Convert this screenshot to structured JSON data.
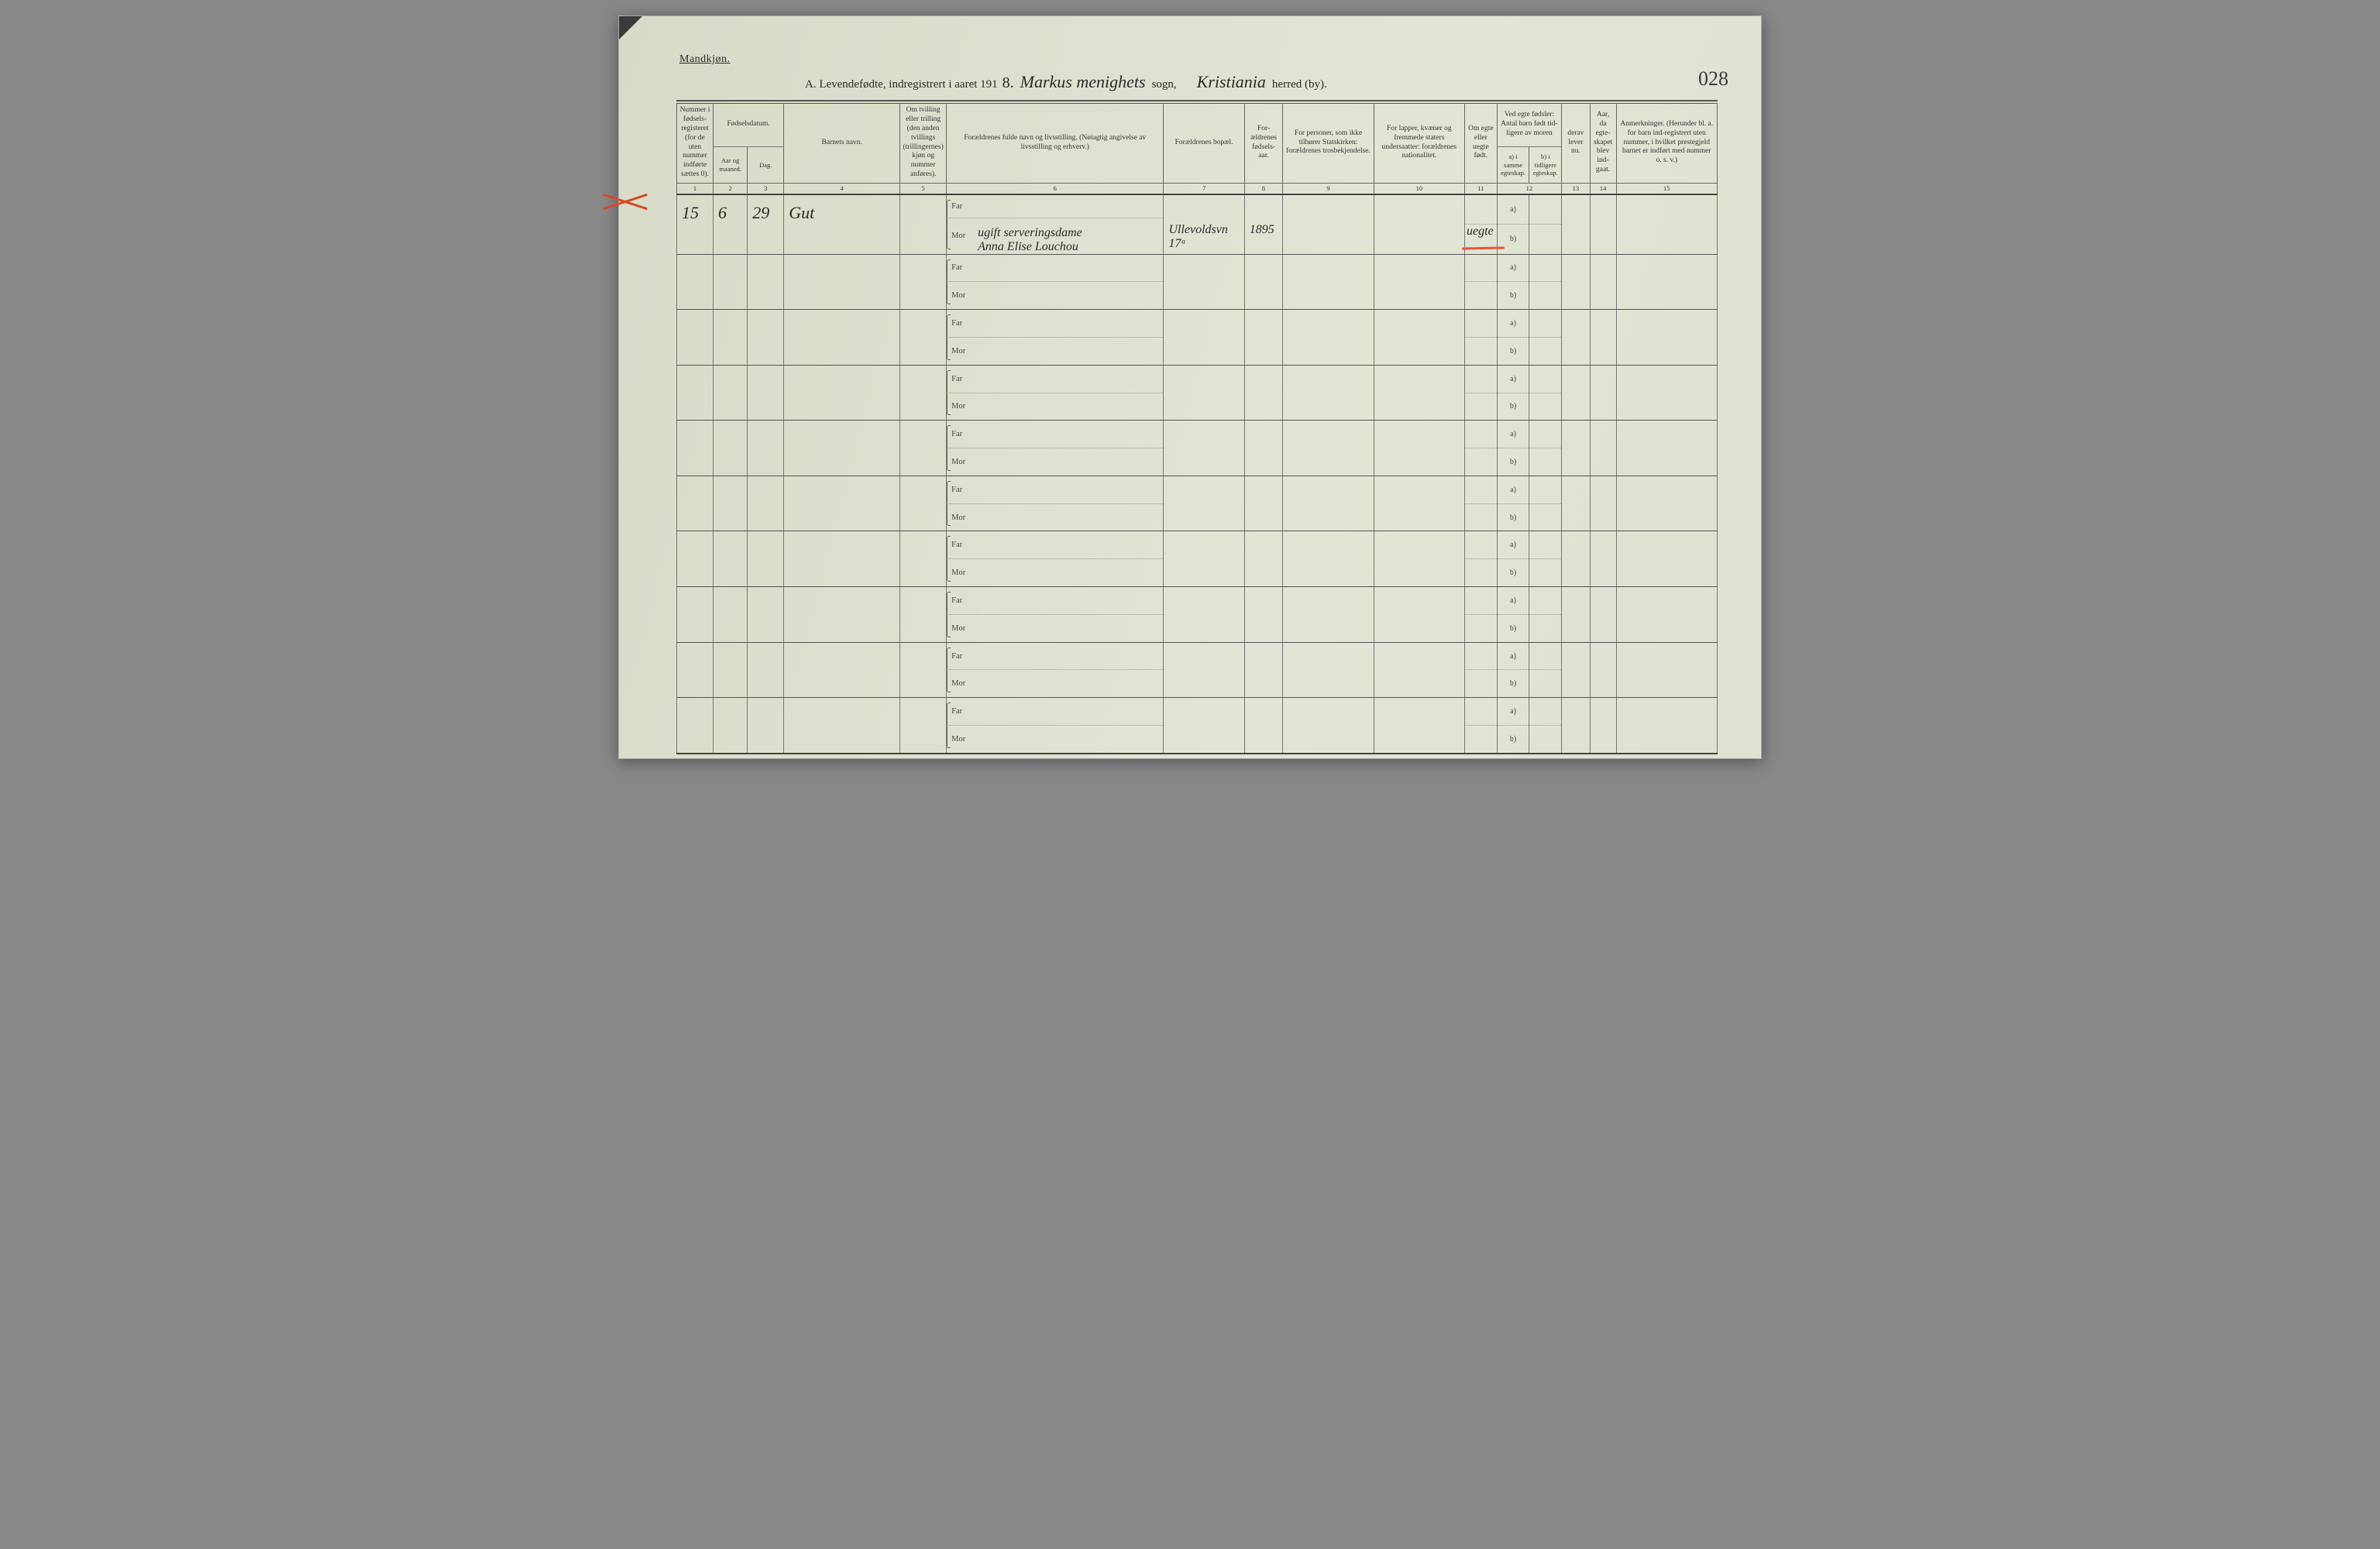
{
  "page": {
    "gender_label": "Mandkjøn.",
    "page_number_handwritten": "028",
    "background_color": "#dde0ce",
    "ink_color": "#2a2a2a",
    "rule_color": "#555555",
    "red_pencil_color": "#d44a2a"
  },
  "title": {
    "prefix": "A.  Levendefødte, indregistrert i aaret 191",
    "year_digit": "8.",
    "sogn_handwritten": "Markus menighets",
    "sogn_printed_suffix": "sogn,",
    "herred_handwritten": "Kristiania",
    "herred_printed_suffix": "herred (by)."
  },
  "columns": {
    "1": "Nummer i fødsels-registeret (for de uten nummer indførte sættes 0).",
    "2a": "Fødselsdatum.",
    "2": "Aar og maaned.",
    "3": "Dag.",
    "4": "Barnets navn.",
    "5": "Om tvilling eller trilling (den anden tvillings (trillingernes) kjøn og nummer anføres).",
    "6": "Forældrenes fulde navn og livsstilling. (Nøiagtig angivelse av livsstilling og erhverv.)",
    "7": "Forældrenes bopæl.",
    "8": "For-ældrenes fødsels-aar.",
    "9": "For personer, som ikke tilhører Statskirken: forældrenes trosbekjendelse.",
    "10": "For lapper, kvæner og fremmede staters undersaatter: forældrenes nationalitet.",
    "11": "Om egte eller uegte født.",
    "12top": "Ved egte fødsler: Antal barn født tid-ligere av moren",
    "12a": "a) i samme egteskap.",
    "12b": "b) i tidligere egteskap.",
    "13top": "derav lever nu.",
    "13": "derav lever nu.",
    "14": "Aar, da egte-skapet blev ind-gaat.",
    "15": "Anmerkninger. (Herunder bl. a. for barn ind-registrert uten nummer, i hvilket prestegjeld barnet er indført med nummer o. s. v.)"
  },
  "colnums": [
    "1",
    "2",
    "3",
    "4",
    "5",
    "6",
    "7",
    "8",
    "9",
    "10",
    "11",
    "12",
    "",
    "13",
    "14",
    "15"
  ],
  "far_label": "Far",
  "mor_label": "Mor",
  "ab_labels": {
    "a": "a)",
    "b": "b)"
  },
  "rows": [
    {
      "c1": "15",
      "c2": "6",
      "c3": "29",
      "c4": "Gut",
      "far_text": "",
      "mor_text_line1": "ugift serveringsdame",
      "mor_text_line2": "Anna Elise Louchou",
      "c7": "Ullevoldsvn 17ᵃ",
      "c8": "1895",
      "c11": "uegte",
      "has_red_x": true,
      "has_red_under_c11": true
    },
    {},
    {},
    {},
    {},
    {},
    {},
    {},
    {},
    {}
  ]
}
